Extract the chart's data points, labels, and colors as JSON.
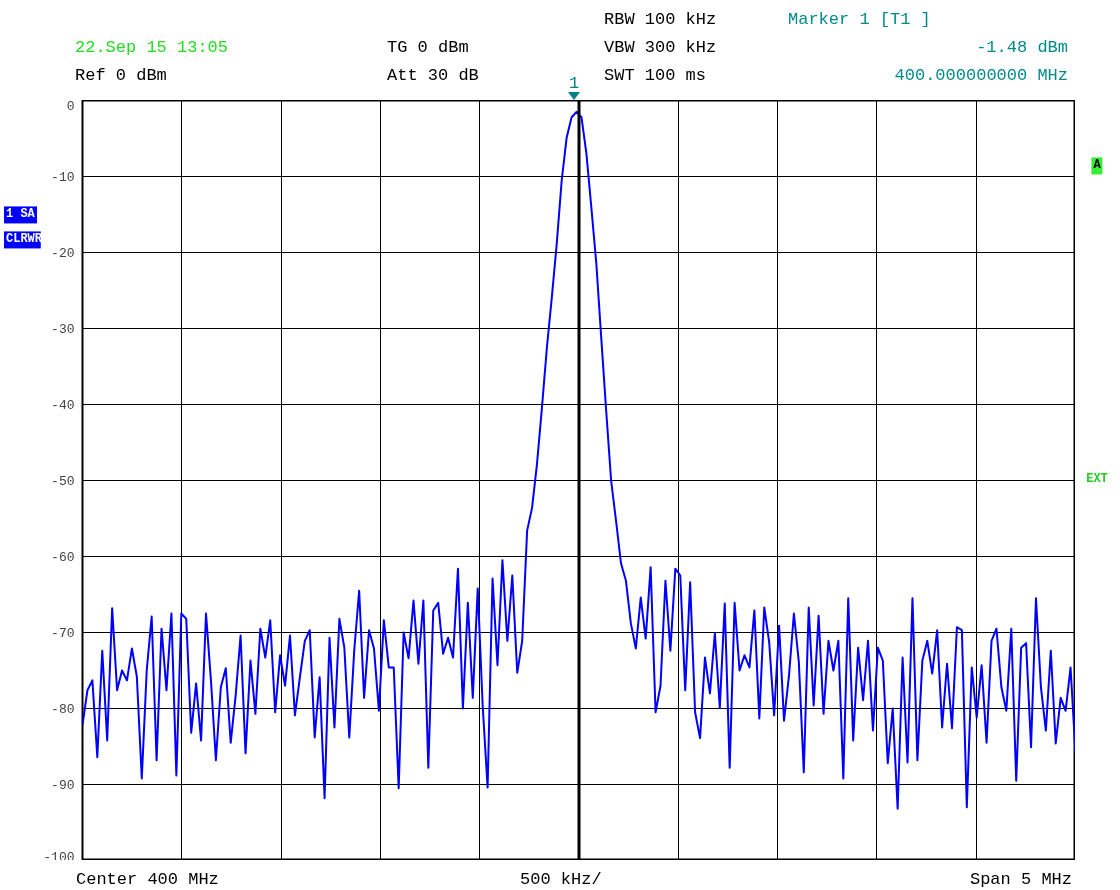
{
  "chart_data": {
    "type": "line",
    "categories": [
      null,
      null,
      null,
      null,
      null,
      null,
      null,
      null,
      null,
      null,
      null,
      null,
      null,
      null,
      null,
      null,
      null,
      null,
      null,
      null,
      null,
      null,
      null,
      null,
      null,
      null,
      null,
      null,
      null,
      null,
      null,
      null,
      null,
      null,
      null,
      null,
      null,
      null,
      null,
      null,
      null,
      null,
      null,
      null,
      null,
      null,
      null,
      null,
      null,
      null,
      null,
      null,
      null,
      null,
      null,
      null,
      null,
      null,
      null,
      null,
      null,
      null,
      null,
      null,
      null,
      null,
      null,
      null,
      null,
      null,
      null,
      null,
      null,
      null,
      null,
      null,
      null,
      null,
      null,
      null,
      null,
      null,
      null,
      null,
      null,
      null,
      null,
      null,
      null,
      null,
      null,
      null,
      null,
      null,
      null,
      null,
      null,
      null,
      null,
      null,
      null,
      null,
      null,
      null,
      null,
      null,
      null,
      null,
      null,
      null,
      null,
      null,
      null,
      null,
      null,
      null,
      null,
      null,
      null,
      null,
      null,
      null,
      null,
      null,
      null,
      null,
      null,
      null,
      null,
      null,
      null,
      null,
      null,
      null,
      null,
      null,
      null,
      null,
      null,
      null,
      null,
      null,
      null,
      null,
      null,
      null,
      null,
      null,
      null,
      null,
      null,
      null,
      null,
      null,
      null,
      null,
      null,
      null,
      null,
      null,
      null,
      null,
      null,
      null,
      null,
      null,
      null,
      null,
      null,
      null,
      null,
      null,
      null,
      null,
      null,
      null,
      null,
      null,
      null,
      null,
      null,
      null,
      null,
      null,
      null,
      null,
      null,
      null,
      null,
      null,
      null,
      null,
      null,
      null,
      null,
      null,
      null,
      null,
      null,
      null,
      null,
      null
    ],
    "series": [
      {
        "color": "#0000ff",
        "values": [
          -82.2,
          -77.6,
          -76.3,
          -86.4,
          -72.4,
          -84.2,
          -66.8,
          -77.6,
          -75.0,
          -76.3,
          -72.1,
          -75.8,
          -89.2,
          -75.0,
          -67.9,
          -86.8,
          -69.5,
          -77.6,
          -67.5,
          -88.8,
          -67.5,
          -68.2,
          -83.2,
          -76.7,
          -84.2,
          -67.5,
          -76.3,
          -86.8,
          -77.2,
          -74.7,
          -84.5,
          -78.3,
          -70.4,
          -85.9,
          -73.7,
          -80.7,
          -69.5,
          -73.3,
          -68.4,
          -80.5,
          -73.0,
          -77.0,
          -70.4,
          -80.9,
          -75.9,
          -71.1,
          -69.7,
          -83.8,
          -75.9,
          -91.8,
          -70.7,
          -82.5,
          -68.2,
          -72.0,
          -83.8,
          -72.4,
          -64.5,
          -78.6,
          -69.7,
          -72.1,
          -80.3,
          -68.4,
          -74.6,
          -74.6,
          -90.5,
          -70.0,
          -73.4,
          -65.8,
          -74.1,
          -65.8,
          -87.8,
          -67.1,
          -66.1,
          -72.8,
          -70.7,
          -73.3,
          -61.6,
          -80.0,
          -66.1,
          -78.6,
          -64.2,
          -79.6,
          -90.4,
          -62.9,
          -74.3,
          -60.5,
          -71.1,
          -62.5,
          -75.3,
          -71.1,
          -56.6,
          -53.6,
          -47.8,
          -40.4,
          -32.5,
          -25.9,
          -18.8,
          -10.5,
          -4.9,
          -2.2,
          -1.5,
          -2.2,
          -7.0,
          -14.1,
          -21.4,
          -31.2,
          -40.8,
          -50.0,
          -55.3,
          -60.9,
          -63.2,
          -68.8,
          -72.1,
          -65.4,
          -70.8,
          -61.4,
          -80.5,
          -77.0,
          -63.2,
          -72.4,
          -61.6,
          -62.5,
          -77.6,
          -63.4,
          -80.5,
          -83.9,
          -73.3,
          -78.0,
          -70.1,
          -79.9,
          -66.2,
          -87.8,
          -66.1,
          -75.0,
          -73.0,
          -74.6,
          -67.1,
          -81.3,
          -66.7,
          -71.3,
          -80.9,
          -69.1,
          -81.6,
          -75.7,
          -67.5,
          -73.9,
          -88.4,
          -66.7,
          -79.6,
          -67.8,
          -80.7,
          -71.1,
          -75.0,
          -71.1,
          -89.2,
          -65.5,
          -84.2,
          -72.0,
          -78.9,
          -71.1,
          -82.9,
          -72.0,
          -73.7,
          -87.2,
          -80.0,
          -93.2,
          -73.3,
          -87.1,
          -65.5,
          -86.8,
          -73.7,
          -71.1,
          -75.4,
          -69.7,
          -82.5,
          -74.1,
          -82.6,
          -69.3,
          -69.7,
          -93.0,
          -74.6,
          -81.2,
          -74.3,
          -84.5,
          -71.1,
          -69.5,
          -77.2,
          -80.3,
          -69.5,
          -89.5,
          -72.0,
          -71.4,
          -85.1,
          -65.5,
          -77.2,
          -82.9,
          -72.4,
          -84.6,
          -78.6,
          -80.3,
          -74.6,
          -85.9
        ]
      }
    ],
    "ylim": [
      -100,
      0
    ],
    "yticks": [
      0,
      -10,
      -20,
      -30,
      -40,
      -50,
      -60,
      -70,
      -80,
      -90,
      -100
    ],
    "tick_labels": "y",
    "grid": true,
    "annotations": [
      "RBW 100 kHz",
      "Marker 1 [T1 ]",
      "22.Sep 15 13:05",
      "TG 0 dBm",
      "VBW 300 kHz",
      "-1.48 dBm",
      "Ref 0 dBm",
      "Att 30 dB",
      "SWT 100 ms",
      "400.000000000 MHz",
      "1 SA",
      "CLRWR",
      "A",
      "EXT",
      "Center 400 MHz",
      "500 kHz/",
      "Span 5 MHz",
      "1"
    ]
  }
}
